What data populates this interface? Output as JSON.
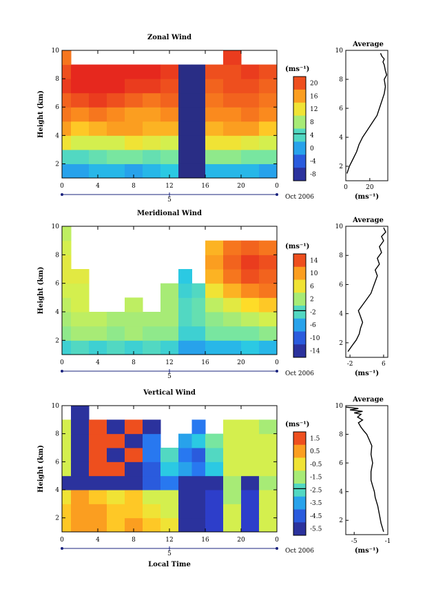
{
  "panels": [
    {
      "title": "Zonal Wind",
      "ylabel": "Height (km)",
      "y_ticks": [
        "2",
        "4",
        "6",
        "8",
        "10"
      ],
      "x_ticks": [
        "0",
        "4",
        "8",
        "12",
        "16",
        "20",
        "0"
      ],
      "date_label": "Oct 2006",
      "day_label": "5",
      "unit": "(ms⁻¹)",
      "colorbar_ticks": [
        "20",
        "16",
        "12",
        "8",
        "4",
        "0",
        "-4",
        "-8"
      ],
      "avg_title": "Average",
      "avg_y_ticks": [
        "2",
        "4",
        "6",
        "8",
        "10"
      ],
      "avg_x_ticks": [
        "0",
        "20"
      ],
      "avg_xlabel": "(ms⁻¹)"
    },
    {
      "title": "Meridional Wind",
      "ylabel": "Height (km)",
      "y_ticks": [
        "2",
        "4",
        "6",
        "8",
        "10"
      ],
      "x_ticks": [
        "0",
        "4",
        "8",
        "12",
        "16",
        "20",
        "0"
      ],
      "date_label": "Oct 2006",
      "day_label": "5",
      "unit": "(ms⁻¹)",
      "colorbar_ticks": [
        "14",
        "10",
        "6",
        "2",
        "-2",
        "-6",
        "-10",
        "-14"
      ],
      "avg_title": "Average",
      "avg_y_ticks": [
        "2",
        "4",
        "6",
        "8",
        "10"
      ],
      "avg_x_ticks": [
        "-2",
        "6"
      ],
      "avg_xlabel": "(ms⁻¹)"
    },
    {
      "title": "Vertical Wind",
      "ylabel": "Height (km)",
      "y_ticks": [
        "2",
        "4",
        "6",
        "8",
        "10"
      ],
      "x_ticks": [
        "0",
        "4",
        "8",
        "12",
        "16",
        "20",
        "0"
      ],
      "date_label": "Oct 2006",
      "day_label": "5",
      "unit": "(ms⁻¹)",
      "colorbar_ticks": [
        "1.5",
        "0.5",
        "-0.5",
        "-1.5",
        "-2.5",
        "-3.5",
        "-4.5",
        "-5.5"
      ],
      "avg_title": "Average",
      "avg_y_ticks": [
        "2",
        "4",
        "6",
        "8",
        "10"
      ],
      "avg_x_ticks": [
        "-5",
        "-1"
      ],
      "avg_xlabel": "(ms⁻¹)",
      "xlabel": "Local Time"
    }
  ],
  "chart_data": [
    {
      "type": "heatmap",
      "title": "Zonal Wind",
      "xlabel": "",
      "ylabel": "Height (km)",
      "xlim": [
        0,
        24
      ],
      "ylim": [
        1,
        10
      ],
      "colorbar": {
        "min": -10,
        "max": 22,
        "unit": "ms-1"
      },
      "x": [
        0,
        2,
        4,
        6,
        8,
        10,
        12,
        14,
        15,
        17,
        19,
        21,
        23
      ],
      "y": [
        1.5,
        2.5,
        3.5,
        4.5,
        5.5,
        6.5,
        7.5,
        8.5,
        9.5
      ],
      "z": [
        [
          0,
          0,
          1,
          1,
          0,
          1,
          2,
          -9,
          -9,
          1,
          1,
          1,
          0
        ],
        [
          4,
          4,
          5,
          6,
          6,
          5,
          6,
          -9,
          -9,
          7,
          7,
          6,
          6
        ],
        [
          12,
          10,
          10,
          10,
          12,
          11,
          10,
          -9,
          -9,
          12,
          12,
          11,
          10
        ],
        [
          16,
          14,
          15,
          16,
          16,
          15,
          15,
          -9,
          -9,
          15,
          16,
          16,
          14
        ],
        [
          18,
          17,
          18,
          17,
          16,
          16,
          17,
          -9,
          -9,
          17,
          17,
          18,
          17
        ],
        [
          19,
          20,
          21,
          20,
          19,
          18,
          19,
          -9,
          -9,
          18,
          19,
          19,
          18
        ],
        [
          21,
          22,
          22,
          22,
          21,
          21,
          20,
          -9,
          -9,
          19,
          20,
          20,
          19
        ],
        [
          20,
          22,
          22,
          22,
          22,
          22,
          21,
          -9,
          -9,
          20,
          20,
          21,
          20
        ],
        [
          18,
          null,
          null,
          null,
          null,
          null,
          null,
          null,
          null,
          null,
          21,
          null,
          null
        ]
      ]
    },
    {
      "type": "heatmap",
      "title": "Meridional Wind",
      "xlabel": "",
      "ylabel": "Height (km)",
      "xlim": [
        0,
        24
      ],
      "ylim": [
        1,
        10
      ],
      "colorbar": {
        "min": -16,
        "max": 16,
        "unit": "ms-1"
      },
      "x": [
        0,
        2,
        4,
        6,
        8,
        10,
        12,
        14,
        15,
        17,
        19,
        21,
        23
      ],
      "y": [
        1.5,
        2.5,
        3.5,
        4.5,
        5.5,
        6.5,
        7.5,
        8.5,
        9.5
      ],
      "z": [
        [
          -3,
          -2,
          -3,
          -2,
          -3,
          -2,
          -3,
          -6,
          -6,
          -5,
          -5,
          -4,
          -5
        ],
        [
          1,
          2,
          2,
          1,
          2,
          1,
          1,
          -3,
          -3,
          0,
          0,
          0,
          1
        ],
        [
          2,
          3,
          3,
          2,
          2,
          2,
          2,
          -2,
          -1,
          1,
          2,
          3,
          4
        ],
        [
          3,
          4,
          null,
          null,
          3,
          null,
          2,
          -2,
          -1,
          3,
          5,
          7,
          8
        ],
        [
          4,
          4,
          null,
          null,
          null,
          null,
          2,
          -3,
          -2,
          6,
          9,
          11,
          12
        ],
        [
          5,
          5,
          null,
          null,
          null,
          null,
          null,
          -4,
          null,
          9,
          12,
          14,
          13
        ],
        [
          5,
          null,
          null,
          null,
          null,
          null,
          null,
          null,
          null,
          10,
          13,
          15,
          14
        ],
        [
          4,
          null,
          null,
          null,
          null,
          null,
          null,
          null,
          null,
          9,
          12,
          13,
          12
        ],
        [
          3,
          null,
          null,
          null,
          null,
          null,
          null,
          null,
          null,
          null,
          null,
          null,
          null
        ]
      ]
    },
    {
      "type": "heatmap",
      "title": "Vertical Wind",
      "xlabel": "Local Time",
      "ylabel": "Height (km)",
      "xlim": [
        0,
        24
      ],
      "ylim": [
        1,
        10
      ],
      "colorbar": {
        "min": -6,
        "max": 2,
        "unit": "ms-1"
      },
      "x": [
        0,
        2,
        4,
        6,
        8,
        10,
        12,
        14,
        15,
        17,
        19,
        21,
        23
      ],
      "y": [
        1.5,
        2.5,
        3.5,
        4.5,
        5.5,
        6.5,
        7.5,
        8.5,
        9.5
      ],
      "z": [
        [
          0,
          0.5,
          0.5,
          0,
          0.5,
          0,
          -0.5,
          -5.5,
          -5.5,
          -5,
          -1,
          -5,
          -1
        ],
        [
          0,
          0.5,
          0.5,
          0,
          0,
          -0.5,
          -1,
          -5.5,
          -5.5,
          -5,
          -1,
          -5,
          -1
        ],
        [
          -0.5,
          0.5,
          0,
          -0.5,
          0,
          -1,
          -1,
          -5.5,
          -5.5,
          -5,
          -1.5,
          -5,
          -1
        ],
        [
          -5.5,
          -5.5,
          -5.5,
          -5.5,
          -5.5,
          -4.5,
          -4,
          -5.5,
          -5.5,
          -5.5,
          -1.5,
          -5.5,
          -1.5
        ],
        [
          -1,
          -5.5,
          1.5,
          1.5,
          -5.5,
          -4.5,
          -3,
          -3.5,
          -4,
          -3,
          -1,
          -1,
          -1
        ],
        [
          -1,
          -5.5,
          1.5,
          -5.5,
          1.5,
          -4,
          -2.5,
          -4,
          -4.5,
          -2.5,
          -1,
          -1,
          -1
        ],
        [
          -1,
          -5.5,
          1.5,
          1.5,
          -5.5,
          -4,
          null,
          -3.5,
          -3,
          -2,
          -1,
          -1,
          -1
        ],
        [
          -1,
          -5.5,
          1.5,
          -5.5,
          1.5,
          -5.5,
          null,
          null,
          -4,
          null,
          -1,
          -1,
          -1.5
        ],
        [
          null,
          -5.5,
          null,
          null,
          null,
          null,
          null,
          null,
          null,
          null,
          null,
          null,
          null
        ]
      ]
    },
    {
      "type": "line",
      "title": "Average",
      "xlabel": "(ms-1)",
      "ylabel": "",
      "xlim": [
        0,
        35
      ],
      "ylim": [
        1,
        10
      ],
      "series": [
        {
          "x": [
            1,
            3,
            6,
            9,
            11,
            14,
            18,
            22,
            26,
            28,
            30,
            32,
            33,
            32,
            34,
            33,
            32,
            31,
            32,
            30,
            29
          ],
          "y": [
            1.5,
            2,
            2.5,
            3,
            3.5,
            4,
            4.5,
            5,
            5.5,
            6,
            6.5,
            7,
            7.5,
            8,
            8.3,
            8.6,
            9,
            9.2,
            9.4,
            9.6,
            9.8
          ]
        }
      ]
    },
    {
      "type": "line",
      "title": "Average",
      "xlabel": "(ms-1)",
      "ylabel": "",
      "xlim": [
        -3,
        7
      ],
      "ylim": [
        1,
        10
      ],
      "series": [
        {
          "x": [
            -2.5,
            -1.5,
            -0.5,
            0.2,
            0.5,
            1,
            0.5,
            0,
            1,
            2,
            3,
            3.5,
            4,
            4.5,
            4,
            5,
            4.5,
            5.5,
            5,
            6,
            5.5,
            6.5,
            6
          ],
          "y": [
            1.4,
            1.8,
            2.2,
            2.6,
            3,
            3.4,
            3.8,
            4.2,
            4.6,
            5,
            5.4,
            5.8,
            6.2,
            6.6,
            7,
            7.4,
            7.8,
            8.2,
            8.6,
            9,
            9.3,
            9.6,
            9.9
          ]
        }
      ]
    },
    {
      "type": "line",
      "title": "Average",
      "xlabel": "(ms-1)",
      "ylabel": "",
      "xlim": [
        -6,
        -1
      ],
      "ylim": [
        1,
        10
      ],
      "series": [
        {
          "x": [
            -1.5,
            -1.8,
            -2,
            -2.2,
            -2.5,
            -2.6,
            -2.8,
            -3,
            -3,
            -2.8,
            -3,
            -2.9,
            -3.2,
            -3.5,
            -3.8,
            -4.2,
            -4.5,
            -4,
            -4.6,
            -4.2,
            -5,
            -4,
            -5.5,
            -4.5,
            -6
          ],
          "y": [
            1.2,
            1.8,
            2.4,
            3,
            3.6,
            4,
            4.4,
            4.8,
            5.4,
            6,
            6.6,
            7.2,
            7.6,
            8,
            8.2,
            8.5,
            8.8,
            9,
            9.2,
            9.4,
            9.5,
            9.6,
            9.7,
            9.8,
            9.9
          ]
        }
      ]
    }
  ]
}
